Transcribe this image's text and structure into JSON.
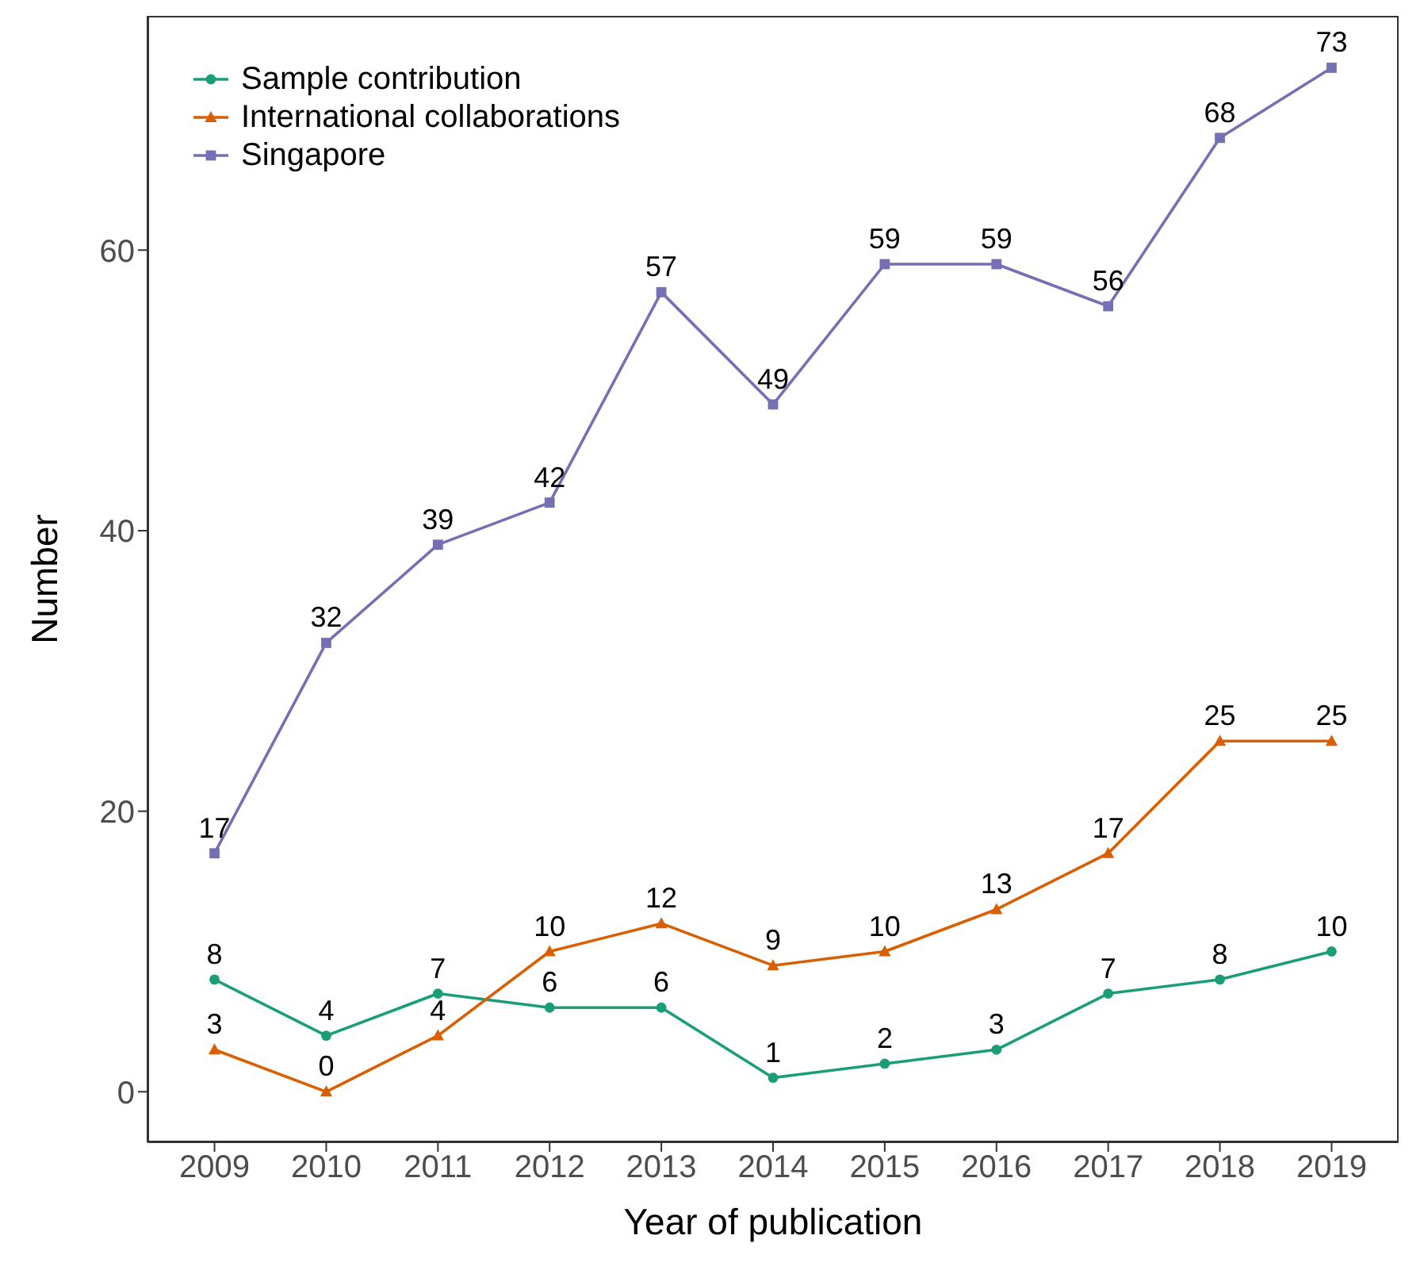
{
  "chart_data": {
    "type": "line",
    "xlabel": "Year of publication",
    "ylabel": "Number",
    "categories": [
      "2009",
      "2010",
      "2011",
      "2012",
      "2013",
      "2014",
      "2015",
      "2016",
      "2017",
      "2018",
      "2019"
    ],
    "series": [
      {
        "name": "Sample contribution",
        "color": "#1b9e77",
        "marker": "circle",
        "values": [
          8,
          4,
          7,
          6,
          6,
          1,
          2,
          3,
          7,
          8,
          10
        ]
      },
      {
        "name": "International collaborations",
        "color": "#d95f02",
        "marker": "triangle",
        "values": [
          3,
          0,
          4,
          10,
          12,
          9,
          10,
          13,
          17,
          25,
          25
        ]
      },
      {
        "name": "Singapore",
        "color": "#7570b3",
        "marker": "square",
        "values": [
          17,
          32,
          39,
          42,
          57,
          49,
          59,
          59,
          56,
          68,
          73
        ]
      }
    ],
    "ylim": [
      -3.6,
      76.7
    ],
    "yticks": [
      0,
      20,
      40,
      60
    ],
    "legend": "top left",
    "data_labels": true
  }
}
